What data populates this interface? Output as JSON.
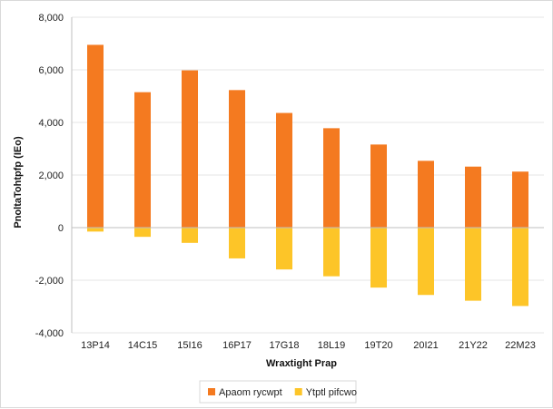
{
  "chart_data": {
    "type": "bar",
    "title": "",
    "xlabel": "Wraxtight Prap",
    "ylabel": "PnoltaTohtpfp (IEo)",
    "ylim": [
      -4000,
      8000
    ],
    "yticks": [
      -4000,
      -2000,
      0,
      2000,
      4000,
      6000,
      8000
    ],
    "ytick_labels": [
      "-4,000",
      "-2,000",
      "0",
      "2,000",
      "4,000",
      "6,000",
      "8,000"
    ],
    "grid": true,
    "legend_position": "bottom",
    "categories": [
      "13P14",
      "14C15",
      "15I16",
      "16P17",
      "17G18",
      "18L19",
      "19T20",
      "20I21",
      "21Y22",
      "22M23"
    ],
    "series": [
      {
        "name": "Apaom rycwpt",
        "color": "#f47a20",
        "values": [
          6950,
          5150,
          5980,
          5230,
          4360,
          3780,
          3160,
          2540,
          2320,
          2130
        ]
      },
      {
        "name": "Ytptl pifcwo",
        "color": "#fdc528",
        "values": [
          -150,
          -350,
          -580,
          -1170,
          -1590,
          -1850,
          -2280,
          -2560,
          -2780,
          -2980
        ]
      }
    ]
  }
}
